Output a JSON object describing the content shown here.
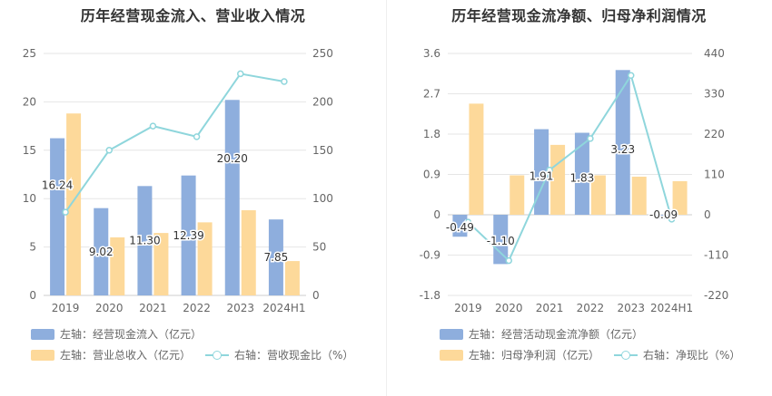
{
  "colors": {
    "blue": "#8eaedd",
    "orange": "#fdd99a",
    "cyan": "#8fd6dc"
  },
  "left": {
    "title": "历年经营现金流入、营业收入情况",
    "legend": {
      "series1": "左轴：经营现金流入（亿元）",
      "series2": "左轴：营业总收入（亿元）",
      "series3": "右轴：营收现金比（%）"
    }
  },
  "right": {
    "title": "历年经营现金流净额、归母净利润情况",
    "legend": {
      "series1": "左轴：经营活动现金流净额（亿元）",
      "series2": "左轴：归母净利润（亿元）",
      "series3": "右轴：净现比（%）"
    }
  },
  "chart_data": [
    {
      "type": "bar",
      "categories": [
        "2019",
        "2020",
        "2021",
        "2022",
        "2023",
        "2024H1"
      ],
      "y_left": {
        "ticks": [
          "0",
          "5",
          "10",
          "15",
          "20",
          "25"
        ],
        "min": 0,
        "max": 25
      },
      "y_right": {
        "ticks": [
          "0",
          "50",
          "100",
          "150",
          "200",
          "250"
        ],
        "min": 0,
        "max": 250
      },
      "series": [
        {
          "name": "左轴：经营现金流入（亿元）",
          "axis": "left",
          "kind": "bar",
          "color": "#8eaedd",
          "values": [
            16.24,
            9.02,
            11.3,
            12.39,
            20.2,
            7.85
          ],
          "labels": [
            "16.24",
            "9.02",
            "11.30",
            "12.39",
            "20.20",
            "7.85"
          ]
        },
        {
          "name": "左轴：营业总收入（亿元）",
          "axis": "left",
          "kind": "bar",
          "color": "#fdd99a",
          "values": [
            18.8,
            6.0,
            6.45,
            7.55,
            8.8,
            3.55
          ]
        },
        {
          "name": "右轴：营收现金比（%）",
          "axis": "right",
          "kind": "line",
          "color": "#8fd6dc",
          "values": [
            86,
            150,
            175,
            164,
            229,
            221
          ]
        }
      ],
      "grid": true
    },
    {
      "type": "bar",
      "categories": [
        "2019",
        "2020",
        "2021",
        "2022",
        "2023",
        "2024H1"
      ],
      "y_left": {
        "ticks": [
          "-1.8",
          "-0.9",
          "0",
          "0.9",
          "1.8",
          "2.7",
          "3.6"
        ],
        "min": -1.8,
        "max": 3.6
      },
      "y_right": {
        "ticks": [
          "-220",
          "-110",
          "0",
          "110",
          "220",
          "330",
          "440"
        ],
        "min": -220,
        "max": 440
      },
      "series": [
        {
          "name": "左轴：经营活动现金流净额（亿元）",
          "axis": "left",
          "kind": "bar",
          "color": "#8eaedd",
          "values": [
            -0.49,
            -1.1,
            1.91,
            1.83,
            3.23,
            -0.09
          ],
          "labels": [
            "-0.49",
            "-1.10",
            "1.91",
            "1.83",
            "3.23",
            "-0.09"
          ]
        },
        {
          "name": "左轴：归母净利润（亿元）",
          "axis": "left",
          "kind": "bar",
          "color": "#fdd99a",
          "values": [
            2.48,
            0.88,
            1.56,
            0.88,
            0.85,
            0.75
          ]
        },
        {
          "name": "右轴：净现比（%）",
          "axis": "right",
          "kind": "line",
          "color": "#8fd6dc",
          "values": [
            -20,
            -125,
            122,
            208,
            380,
            -12
          ]
        }
      ],
      "grid": true
    }
  ]
}
